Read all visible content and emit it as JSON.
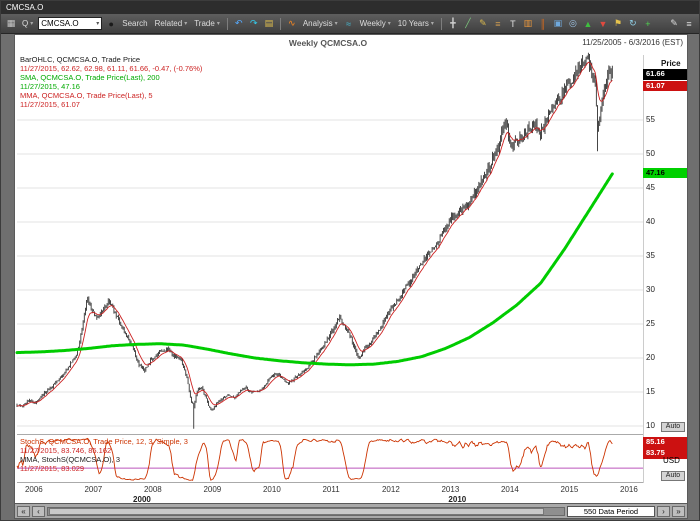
{
  "window": {
    "title": "CMCSA.O"
  },
  "toolbar": {
    "items": [
      {
        "type": "icon",
        "name": "app-icon",
        "glyph": "▦",
        "color": "#c8c8c8"
      },
      {
        "type": "dropdown",
        "name": "quote-selector",
        "label": "Q"
      },
      {
        "type": "input",
        "name": "symbol-input",
        "value": "CMCSA.O"
      },
      {
        "type": "icon",
        "name": "search-icon",
        "glyph": "●",
        "color": "#1a1a1a"
      },
      {
        "type": "label",
        "name": "search-button",
        "label": "Search"
      },
      {
        "type": "dropdown",
        "name": "related-menu",
        "label": "Related"
      },
      {
        "type": "dropdown",
        "name": "trade-menu",
        "label": "Trade"
      },
      {
        "type": "sep"
      },
      {
        "type": "icon",
        "name": "undo-icon",
        "glyph": "↶",
        "color": "#55aaff"
      },
      {
        "type": "icon",
        "name": "redo-icon",
        "glyph": "↷",
        "color": "#33ccee"
      },
      {
        "type": "icon",
        "name": "folder-icon",
        "glyph": "▤",
        "color": "#e6c34d"
      },
      {
        "type": "sep"
      },
      {
        "type": "icon",
        "name": "analysis-icon",
        "glyph": "∿",
        "color": "#ff8a1e"
      },
      {
        "type": "dropdown",
        "name": "analysis-menu",
        "label": "Analysis"
      },
      {
        "type": "icon",
        "name": "wave-icon",
        "glyph": "≈",
        "color": "#44bbd4"
      },
      {
        "type": "dropdown",
        "name": "interval-selector",
        "label": "Weekly"
      },
      {
        "type": "dropdown",
        "name": "range-selector",
        "label": "10 Years"
      },
      {
        "type": "sep"
      },
      {
        "type": "icon",
        "name": "cursor-tool-icon",
        "glyph": "╋",
        "color": "#cfcfcf"
      },
      {
        "type": "icon",
        "name": "trendline-tool-icon",
        "glyph": "╱",
        "color": "#7ec97e"
      },
      {
        "type": "icon",
        "name": "drawing-tools-icon",
        "glyph": "✎",
        "color": "#d9b84d"
      },
      {
        "type": "icon",
        "name": "fibonacci-tool-icon",
        "glyph": "≡",
        "color": "#cf9c4f"
      },
      {
        "type": "icon",
        "name": "text-annotation-icon",
        "glyph": "T",
        "color": "#e0e0e0"
      },
      {
        "type": "icon",
        "name": "chart-type-icon",
        "glyph": "▥",
        "color": "#e8963c"
      },
      {
        "type": "icon",
        "name": "candlestick-icon",
        "glyph": "║",
        "color": "#d2691e"
      },
      {
        "type": "icon",
        "name": "overlay-icon",
        "glyph": "▣",
        "color": "#6fa8dc"
      },
      {
        "type": "icon",
        "name": "zoom-tool-icon",
        "glyph": "◎",
        "color": "#9fc5e8"
      },
      {
        "type": "icon",
        "name": "signal-up-icon",
        "glyph": "▲",
        "color": "#3fbf3f"
      },
      {
        "type": "icon",
        "name": "signal-down-icon",
        "glyph": "▼",
        "color": "#e04a3f"
      },
      {
        "type": "icon",
        "name": "flag-tool-icon",
        "glyph": "⚑",
        "color": "#e6c34d"
      },
      {
        "type": "icon",
        "name": "refresh-icon",
        "glyph": "↻",
        "color": "#8fd0e8"
      },
      {
        "type": "icon",
        "name": "add-study-icon",
        "glyph": "+",
        "color": "#4fd44f"
      },
      {
        "type": "spacer"
      },
      {
        "type": "icon",
        "name": "edit-icon",
        "glyph": "✎",
        "color": "#dddddd"
      },
      {
        "type": "icon",
        "name": "menu-icon",
        "glyph": "≡",
        "color": "#dddddd"
      }
    ]
  },
  "chart": {
    "header_title": "Weekly QCMCSA.O",
    "header_range": "11/25/2005 - 6/3/2016 (EST)",
    "auto_label": "Auto",
    "currency": "USD",
    "legend_main": [
      {
        "text": "BarOHLC, QCMCSA.O, Trade Price",
        "color": "#1a1a1a"
      },
      {
        "text": "11/27/2015, 62.62, 62.98, 61.11, 61.66, -0.47, (-0.76%)",
        "color": "#cc2222"
      },
      {
        "text": "SMA, QCMCSA.O, Trade Price(Last), 200",
        "color": "#00aa00"
      },
      {
        "text": "11/27/2015, 47.16",
        "color": "#00aa00"
      },
      {
        "text": "MMA, QCMCSA.O, Trade Price(Last), 5",
        "color": "#cc2222"
      },
      {
        "text": "11/27/2015, 61.07",
        "color": "#cc2222"
      }
    ],
    "legend_stoch": [
      {
        "text": "StochS, QCMCSA.O, Trade Price, 12, 3, Simple, 3",
        "color": "#cc3300"
      },
      {
        "text": "11/27/2015, 83.746, 85.162",
        "color": "#cc2222"
      },
      {
        "text": "MMA, StochS(QCMCSA.O), 3",
        "color": "#1a1a1a"
      },
      {
        "text": "11/27/2015, 83.029",
        "color": "#cc2222"
      }
    ],
    "price_axis": {
      "title": "Price",
      "ticks": [
        55,
        50,
        45,
        40,
        35,
        30,
        25,
        20,
        15,
        10
      ],
      "tags": [
        {
          "value": "61.66",
          "bg": "#000000",
          "fg": "#ffffff"
        },
        {
          "value": "61.07",
          "bg": "#cc1111",
          "fg": "#ffffff"
        },
        {
          "value": "47.16",
          "bg": "#00d000",
          "fg": "#000000"
        }
      ]
    },
    "stoch_axis": {
      "tags": [
        {
          "value": "85.16",
          "bg": "#cc1111",
          "fg": "#ffffff"
        },
        {
          "value": "83.75",
          "bg": "#cc1111",
          "fg": "#ffffff"
        }
      ]
    },
    "x_axis": {
      "years": [
        "2006",
        "2007",
        "2008",
        "2009",
        "2010",
        "2011",
        "2012",
        "2013",
        "2014",
        "2015",
        "2016"
      ],
      "decades": [
        {
          "label": "2000",
          "center": 2008.0
        },
        {
          "label": "2010",
          "center": 2013.3
        }
      ]
    }
  },
  "bottom_bar": {
    "far_left": "«",
    "left": "‹",
    "right": "›",
    "far_right": "»",
    "data_period": "550 Data Period"
  },
  "chart_data": {
    "type": "ohlc",
    "symbol": "QCMCSA.O",
    "interval": "Weekly",
    "title": "Weekly QCMCSA.O",
    "x_range": [
      2005.9,
      2016.42
    ],
    "data_end": 2015.91,
    "price_ylim": [
      8.8,
      63.8
    ],
    "stoch_ylim": [
      0,
      100
    ],
    "last_values": {
      "date": "11/27/2015",
      "open": 62.62,
      "high": 62.98,
      "low": 61.11,
      "close": 61.66,
      "change": -0.47,
      "change_pct": -0.76,
      "sma200": 47.16,
      "mma5": 61.07,
      "stoch_k": 83.746,
      "stoch_d": 85.162,
      "stoch_mma3": 83.029
    },
    "spikes": [
      {
        "t": 2008.87,
        "low": 9.6
      },
      {
        "t": 2015.66,
        "low": 50.4
      }
    ],
    "series": [
      {
        "name": "BarOHLC Trade Price",
        "style": "ohlc-bars",
        "color": "#1a1a1a",
        "close_anchors": [
          [
            2005.9,
            13.1
          ],
          [
            2006.0,
            12.9
          ],
          [
            2006.1,
            13.8
          ],
          [
            2006.2,
            13.4
          ],
          [
            2006.3,
            14.2
          ],
          [
            2006.4,
            15.2
          ],
          [
            2006.5,
            15.8
          ],
          [
            2006.6,
            16.8
          ],
          [
            2006.7,
            17.8
          ],
          [
            2006.8,
            19.2
          ],
          [
            2006.9,
            20.3
          ],
          [
            2007.0,
            24.5
          ],
          [
            2007.08,
            29.2
          ],
          [
            2007.15,
            27.0
          ],
          [
            2007.25,
            25.8
          ],
          [
            2007.35,
            27.2
          ],
          [
            2007.45,
            28.3
          ],
          [
            2007.55,
            26.5
          ],
          [
            2007.65,
            24.8
          ],
          [
            2007.75,
            23.0
          ],
          [
            2007.85,
            21.5
          ],
          [
            2007.95,
            19.0
          ],
          [
            2008.05,
            18.2
          ],
          [
            2008.15,
            19.8
          ],
          [
            2008.3,
            20.8
          ],
          [
            2008.45,
            21.3
          ],
          [
            2008.55,
            20.2
          ],
          [
            2008.65,
            19.8
          ],
          [
            2008.75,
            17.5
          ],
          [
            2008.82,
            14.0
          ],
          [
            2008.87,
            12.8
          ],
          [
            2008.93,
            15.3
          ],
          [
            2009.0,
            15.8
          ],
          [
            2009.08,
            14.0
          ],
          [
            2009.16,
            12.2
          ],
          [
            2009.25,
            13.2
          ],
          [
            2009.35,
            14.0
          ],
          [
            2009.45,
            14.6
          ],
          [
            2009.55,
            14.1
          ],
          [
            2009.65,
            15.2
          ],
          [
            2009.75,
            15.6
          ],
          [
            2009.85,
            14.9
          ],
          [
            2009.95,
            15.2
          ],
          [
            2010.05,
            15.8
          ],
          [
            2010.15,
            16.9
          ],
          [
            2010.25,
            17.8
          ],
          [
            2010.35,
            17.2
          ],
          [
            2010.45,
            16.3
          ],
          [
            2010.55,
            16.8
          ],
          [
            2010.65,
            17.6
          ],
          [
            2010.75,
            18.3
          ],
          [
            2010.85,
            19.4
          ],
          [
            2010.95,
            20.6
          ],
          [
            2011.05,
            21.8
          ],
          [
            2011.15,
            23.2
          ],
          [
            2011.25,
            24.8
          ],
          [
            2011.32,
            25.9
          ],
          [
            2011.4,
            24.6
          ],
          [
            2011.5,
            23.2
          ],
          [
            2011.6,
            20.8
          ],
          [
            2011.66,
            19.9
          ],
          [
            2011.75,
            21.6
          ],
          [
            2011.85,
            22.3
          ],
          [
            2011.95,
            23.6
          ],
          [
            2012.05,
            25.2
          ],
          [
            2012.15,
            26.8
          ],
          [
            2012.25,
            28.0
          ],
          [
            2012.35,
            29.2
          ],
          [
            2012.45,
            30.6
          ],
          [
            2012.55,
            31.8
          ],
          [
            2012.65,
            33.2
          ],
          [
            2012.75,
            34.6
          ],
          [
            2012.85,
            35.8
          ],
          [
            2012.95,
            36.6
          ],
          [
            2013.05,
            38.2
          ],
          [
            2013.15,
            39.8
          ],
          [
            2013.25,
            41.0
          ],
          [
            2013.35,
            41.8
          ],
          [
            2013.45,
            42.2
          ],
          [
            2013.55,
            43.6
          ],
          [
            2013.65,
            45.0
          ],
          [
            2013.75,
            46.6
          ],
          [
            2013.85,
            48.4
          ],
          [
            2013.95,
            50.2
          ],
          [
            2014.05,
            53.0
          ],
          [
            2014.12,
            54.6
          ],
          [
            2014.2,
            51.0
          ],
          [
            2014.3,
            51.8
          ],
          [
            2014.4,
            52.6
          ],
          [
            2014.5,
            53.6
          ],
          [
            2014.6,
            54.4
          ],
          [
            2014.7,
            53.2
          ],
          [
            2014.8,
            55.0
          ],
          [
            2014.9,
            57.2
          ],
          [
            2015.0,
            58.0
          ],
          [
            2015.1,
            59.4
          ],
          [
            2015.2,
            60.6
          ],
          [
            2015.3,
            62.0
          ],
          [
            2015.4,
            63.6
          ],
          [
            2015.47,
            64.2
          ],
          [
            2015.55,
            62.6
          ],
          [
            2015.62,
            60.2
          ],
          [
            2015.66,
            53.5
          ],
          [
            2015.72,
            57.5
          ],
          [
            2015.78,
            59.5
          ],
          [
            2015.84,
            62.0
          ],
          [
            2015.88,
            61.0
          ],
          [
            2015.91,
            61.66
          ]
        ]
      },
      {
        "name": "SMA 200",
        "style": "line",
        "color": "#00cc00",
        "points": [
          [
            2005.9,
            20.8
          ],
          [
            2006.3,
            20.9
          ],
          [
            2006.7,
            21.1
          ],
          [
            2007.1,
            21.4
          ],
          [
            2007.5,
            21.8
          ],
          [
            2007.9,
            22.0
          ],
          [
            2008.3,
            22.1
          ],
          [
            2008.7,
            21.9
          ],
          [
            2009.1,
            21.3
          ],
          [
            2009.5,
            20.6
          ],
          [
            2009.9,
            20.0
          ],
          [
            2010.3,
            19.6
          ],
          [
            2010.7,
            19.3
          ],
          [
            2011.1,
            19.1
          ],
          [
            2011.5,
            19.0
          ],
          [
            2011.9,
            19.1
          ],
          [
            2012.3,
            19.5
          ],
          [
            2012.7,
            20.2
          ],
          [
            2013.1,
            21.4
          ],
          [
            2013.5,
            23.0
          ],
          [
            2013.9,
            25.2
          ],
          [
            2014.3,
            27.8
          ],
          [
            2014.7,
            31.0
          ],
          [
            2015.1,
            36.0
          ],
          [
            2015.5,
            41.5
          ],
          [
            2015.91,
            47.16
          ]
        ]
      },
      {
        "name": "MMA 5",
        "style": "line",
        "color": "#cc2222",
        "derived_from": "weekly close, period 5"
      },
      {
        "name": "StochS 12,3 Simple 3",
        "style": "line",
        "color": "#cc3300",
        "pane": "lower",
        "derived_from": "ohlc stochastic 12,3",
        "hline": {
          "value": 30,
          "color": "#bb55bb"
        }
      }
    ]
  }
}
